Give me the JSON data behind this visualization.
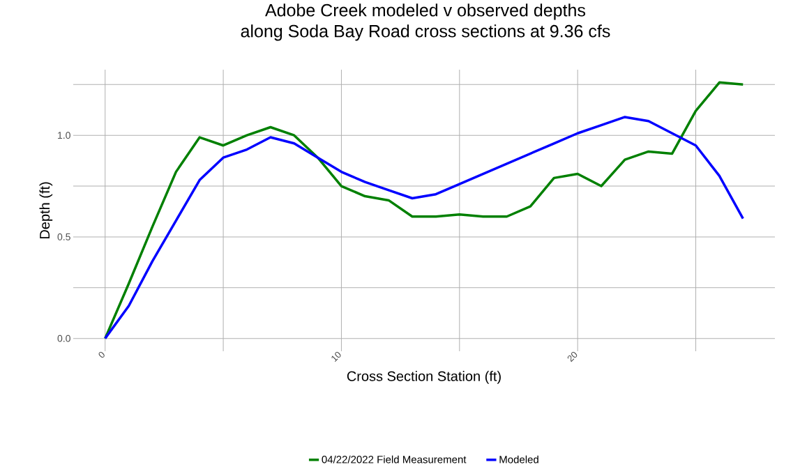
{
  "chart_data": {
    "type": "line",
    "title": "Adobe Creek modeled v observed depths\nalong Soda Bay Road cross sections at 9.36 cfs",
    "xlabel": "Cross Section Station (ft)",
    "ylabel": "Depth (ft)",
    "x": [
      0,
      1,
      2,
      3,
      4,
      5,
      6,
      7,
      8,
      9,
      10,
      11,
      12,
      13,
      14,
      15,
      16,
      17,
      18,
      19,
      20,
      21,
      22,
      23,
      24,
      25,
      26,
      27
    ],
    "series": [
      {
        "name": "04/22/2022 Field Measurement",
        "color": "#008000",
        "values": [
          0,
          0.27,
          0.55,
          0.82,
          0.99,
          0.95,
          1.0,
          1.04,
          1.0,
          0.89,
          0.75,
          0.7,
          0.68,
          0.6,
          0.6,
          0.61,
          0.6,
          0.6,
          0.65,
          0.79,
          0.81,
          0.75,
          0.88,
          0.92,
          0.91,
          1.12,
          1.26,
          1.25
        ]
      },
      {
        "name": "Modeled",
        "color": "#0000ff",
        "values": [
          0,
          0.16,
          0.38,
          0.58,
          0.78,
          0.89,
          0.93,
          0.99,
          0.96,
          0.89,
          0.82,
          0.77,
          0.73,
          0.69,
          0.71,
          0.76,
          0.81,
          0.86,
          0.91,
          0.96,
          1.01,
          1.05,
          1.09,
          1.07,
          1.01,
          0.95,
          0.8,
          0.59
        ]
      }
    ],
    "xlim": [
      -1.35,
      28.35
    ],
    "ylim": [
      -0.063,
      1.323
    ],
    "xticks": [
      0,
      {
        "value": 5,
        "label": null
      },
      10,
      {
        "value": 15,
        "label": null
      },
      20,
      {
        "value": 25,
        "label": null
      }
    ],
    "yticks": [
      "0.0",
      {
        "value": 0.25,
        "label": null
      },
      {
        "value": 0.5,
        "label": "0.5"
      },
      {
        "value": 0.75,
        "label": null
      },
      {
        "value": 1.0,
        "label": "1.0"
      },
      {
        "value": 1.25,
        "label": null
      }
    ],
    "grid": true,
    "legend": "bottom",
    "line_style": "solid",
    "marker": "none"
  }
}
